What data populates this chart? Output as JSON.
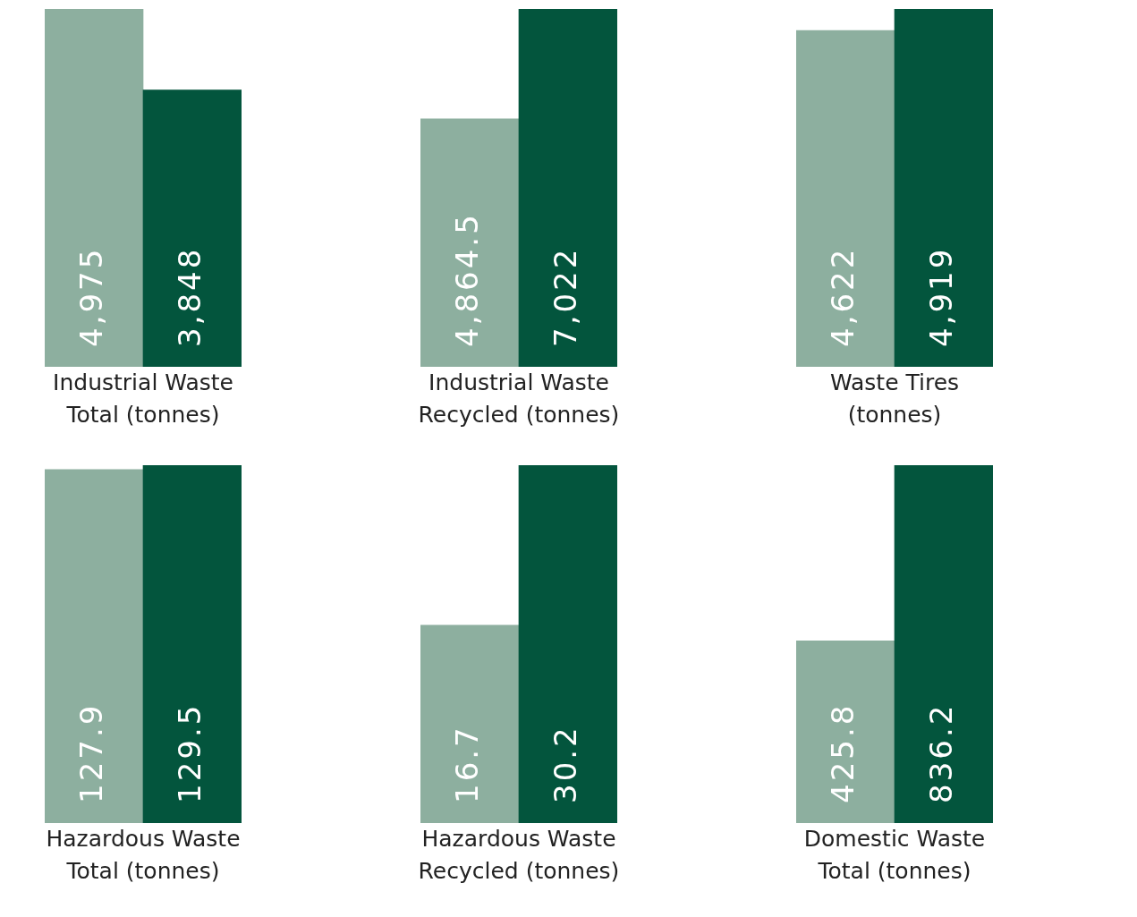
{
  "chart_data": [
    {
      "type": "bar",
      "xlabel": "Industrial Waste Total (tonnes)",
      "categories": [
        null,
        null
      ],
      "values": [
        4975,
        3848
      ],
      "colors": [
        "#8daf9f",
        "#03553d"
      ],
      "value_labels": [
        "4,975",
        "3,848"
      ]
    },
    {
      "type": "bar",
      "xlabel": "Industrial Waste Recycled (tonnes)",
      "categories": [
        null,
        null
      ],
      "values": [
        4864.5,
        7022
      ],
      "colors": [
        "#8daf9f",
        "#03553d"
      ],
      "value_labels": [
        "4,864.5",
        "7,022"
      ]
    },
    {
      "type": "bar",
      "xlabel": "Waste Tires (tonnes)",
      "categories": [
        null,
        null
      ],
      "values": [
        4622,
        4919
      ],
      "colors": [
        "#8daf9f",
        "#03553d"
      ],
      "value_labels": [
        "4,622",
        "4,919"
      ]
    },
    {
      "type": "bar",
      "xlabel": "Hazardous Waste Total (tonnes)",
      "categories": [
        null,
        null
      ],
      "values": [
        127.9,
        129.5
      ],
      "colors": [
        "#8daf9f",
        "#03553d"
      ],
      "value_labels": [
        "127.9",
        "129.5"
      ]
    },
    {
      "type": "bar",
      "xlabel": "Hazardous Waste Recycled (tonnes)",
      "categories": [
        null,
        null
      ],
      "values": [
        16.7,
        30.2
      ],
      "colors": [
        "#8daf9f",
        "#03553d"
      ],
      "value_labels": [
        "16.7",
        "30.2"
      ]
    },
    {
      "type": "bar",
      "xlabel": "Domestic Waste Total (tonnes)",
      "categories": [
        null,
        null
      ],
      "values": [
        425.8,
        836.2
      ],
      "colors": [
        "#8daf9f",
        "#03553d"
      ],
      "value_labels": [
        "425.8",
        "836.2"
      ]
    }
  ]
}
